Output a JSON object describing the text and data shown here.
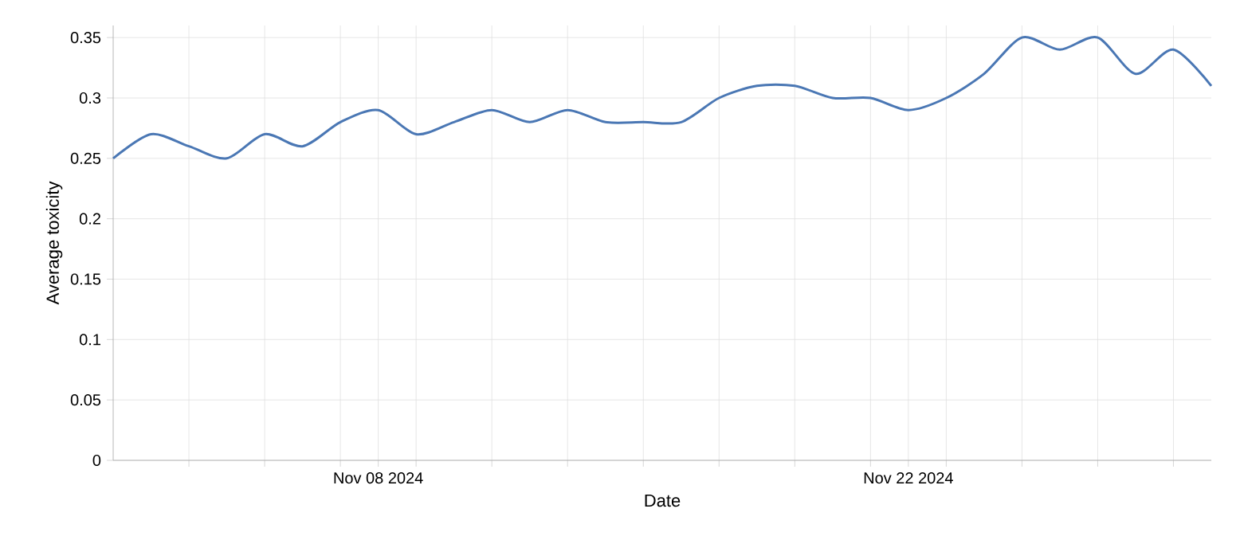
{
  "chart_data": {
    "type": "line",
    "xlabel": "Date",
    "ylabel": "Average toxicity",
    "x": [
      "2024-11-01",
      "2024-11-02",
      "2024-11-03",
      "2024-11-04",
      "2024-11-05",
      "2024-11-06",
      "2024-11-07",
      "2024-11-08",
      "2024-11-09",
      "2024-11-10",
      "2024-11-11",
      "2024-11-12",
      "2024-11-13",
      "2024-11-14",
      "2024-11-15",
      "2024-11-16",
      "2024-11-17",
      "2024-11-18",
      "2024-11-19",
      "2024-11-20",
      "2024-11-21",
      "2024-11-22",
      "2024-11-23",
      "2024-11-24",
      "2024-11-25",
      "2024-11-26",
      "2024-11-27",
      "2024-11-28",
      "2024-11-29",
      "2024-11-30"
    ],
    "series": [
      {
        "color": "#4a77b4",
        "values": [
          0.25,
          0.27,
          0.26,
          0.25,
          0.27,
          0.26,
          0.28,
          0.29,
          0.27,
          0.28,
          0.29,
          0.28,
          0.29,
          0.28,
          0.28,
          0.28,
          0.3,
          0.31,
          0.31,
          0.3,
          0.3,
          0.29,
          0.3,
          0.32,
          0.35,
          0.34,
          0.35,
          0.32,
          0.34,
          0.31
        ]
      }
    ],
    "xlim": [
      "2024-11-01",
      "2024-11-30"
    ],
    "xticks": [
      {
        "value": "2024-11-03",
        "label": null
      },
      {
        "value": "2024-11-05",
        "label": null
      },
      {
        "value": "2024-11-07",
        "label": null
      },
      {
        "value": "2024-11-08",
        "label": "Nov 08 2024"
      },
      {
        "value": "2024-11-09",
        "label": null
      },
      {
        "value": "2024-11-11",
        "label": null
      },
      {
        "value": "2024-11-13",
        "label": null
      },
      {
        "value": "2024-11-15",
        "label": null
      },
      {
        "value": "2024-11-17",
        "label": null
      },
      {
        "value": "2024-11-19",
        "label": null
      },
      {
        "value": "2024-11-21",
        "label": null
      },
      {
        "value": "2024-11-22",
        "label": "Nov 22 2024"
      },
      {
        "value": "2024-11-23",
        "label": null
      },
      {
        "value": "2024-11-25",
        "label": null
      },
      {
        "value": "2024-11-27",
        "label": null
      },
      {
        "value": "2024-11-29",
        "label": null
      }
    ],
    "ylim": [
      0,
      0.36
    ],
    "yticks": [
      0,
      0.05,
      0.1,
      0.15,
      0.2,
      0.25,
      0.3,
      0.35
    ],
    "grid": true,
    "marker": "none",
    "line_style": "solid"
  }
}
